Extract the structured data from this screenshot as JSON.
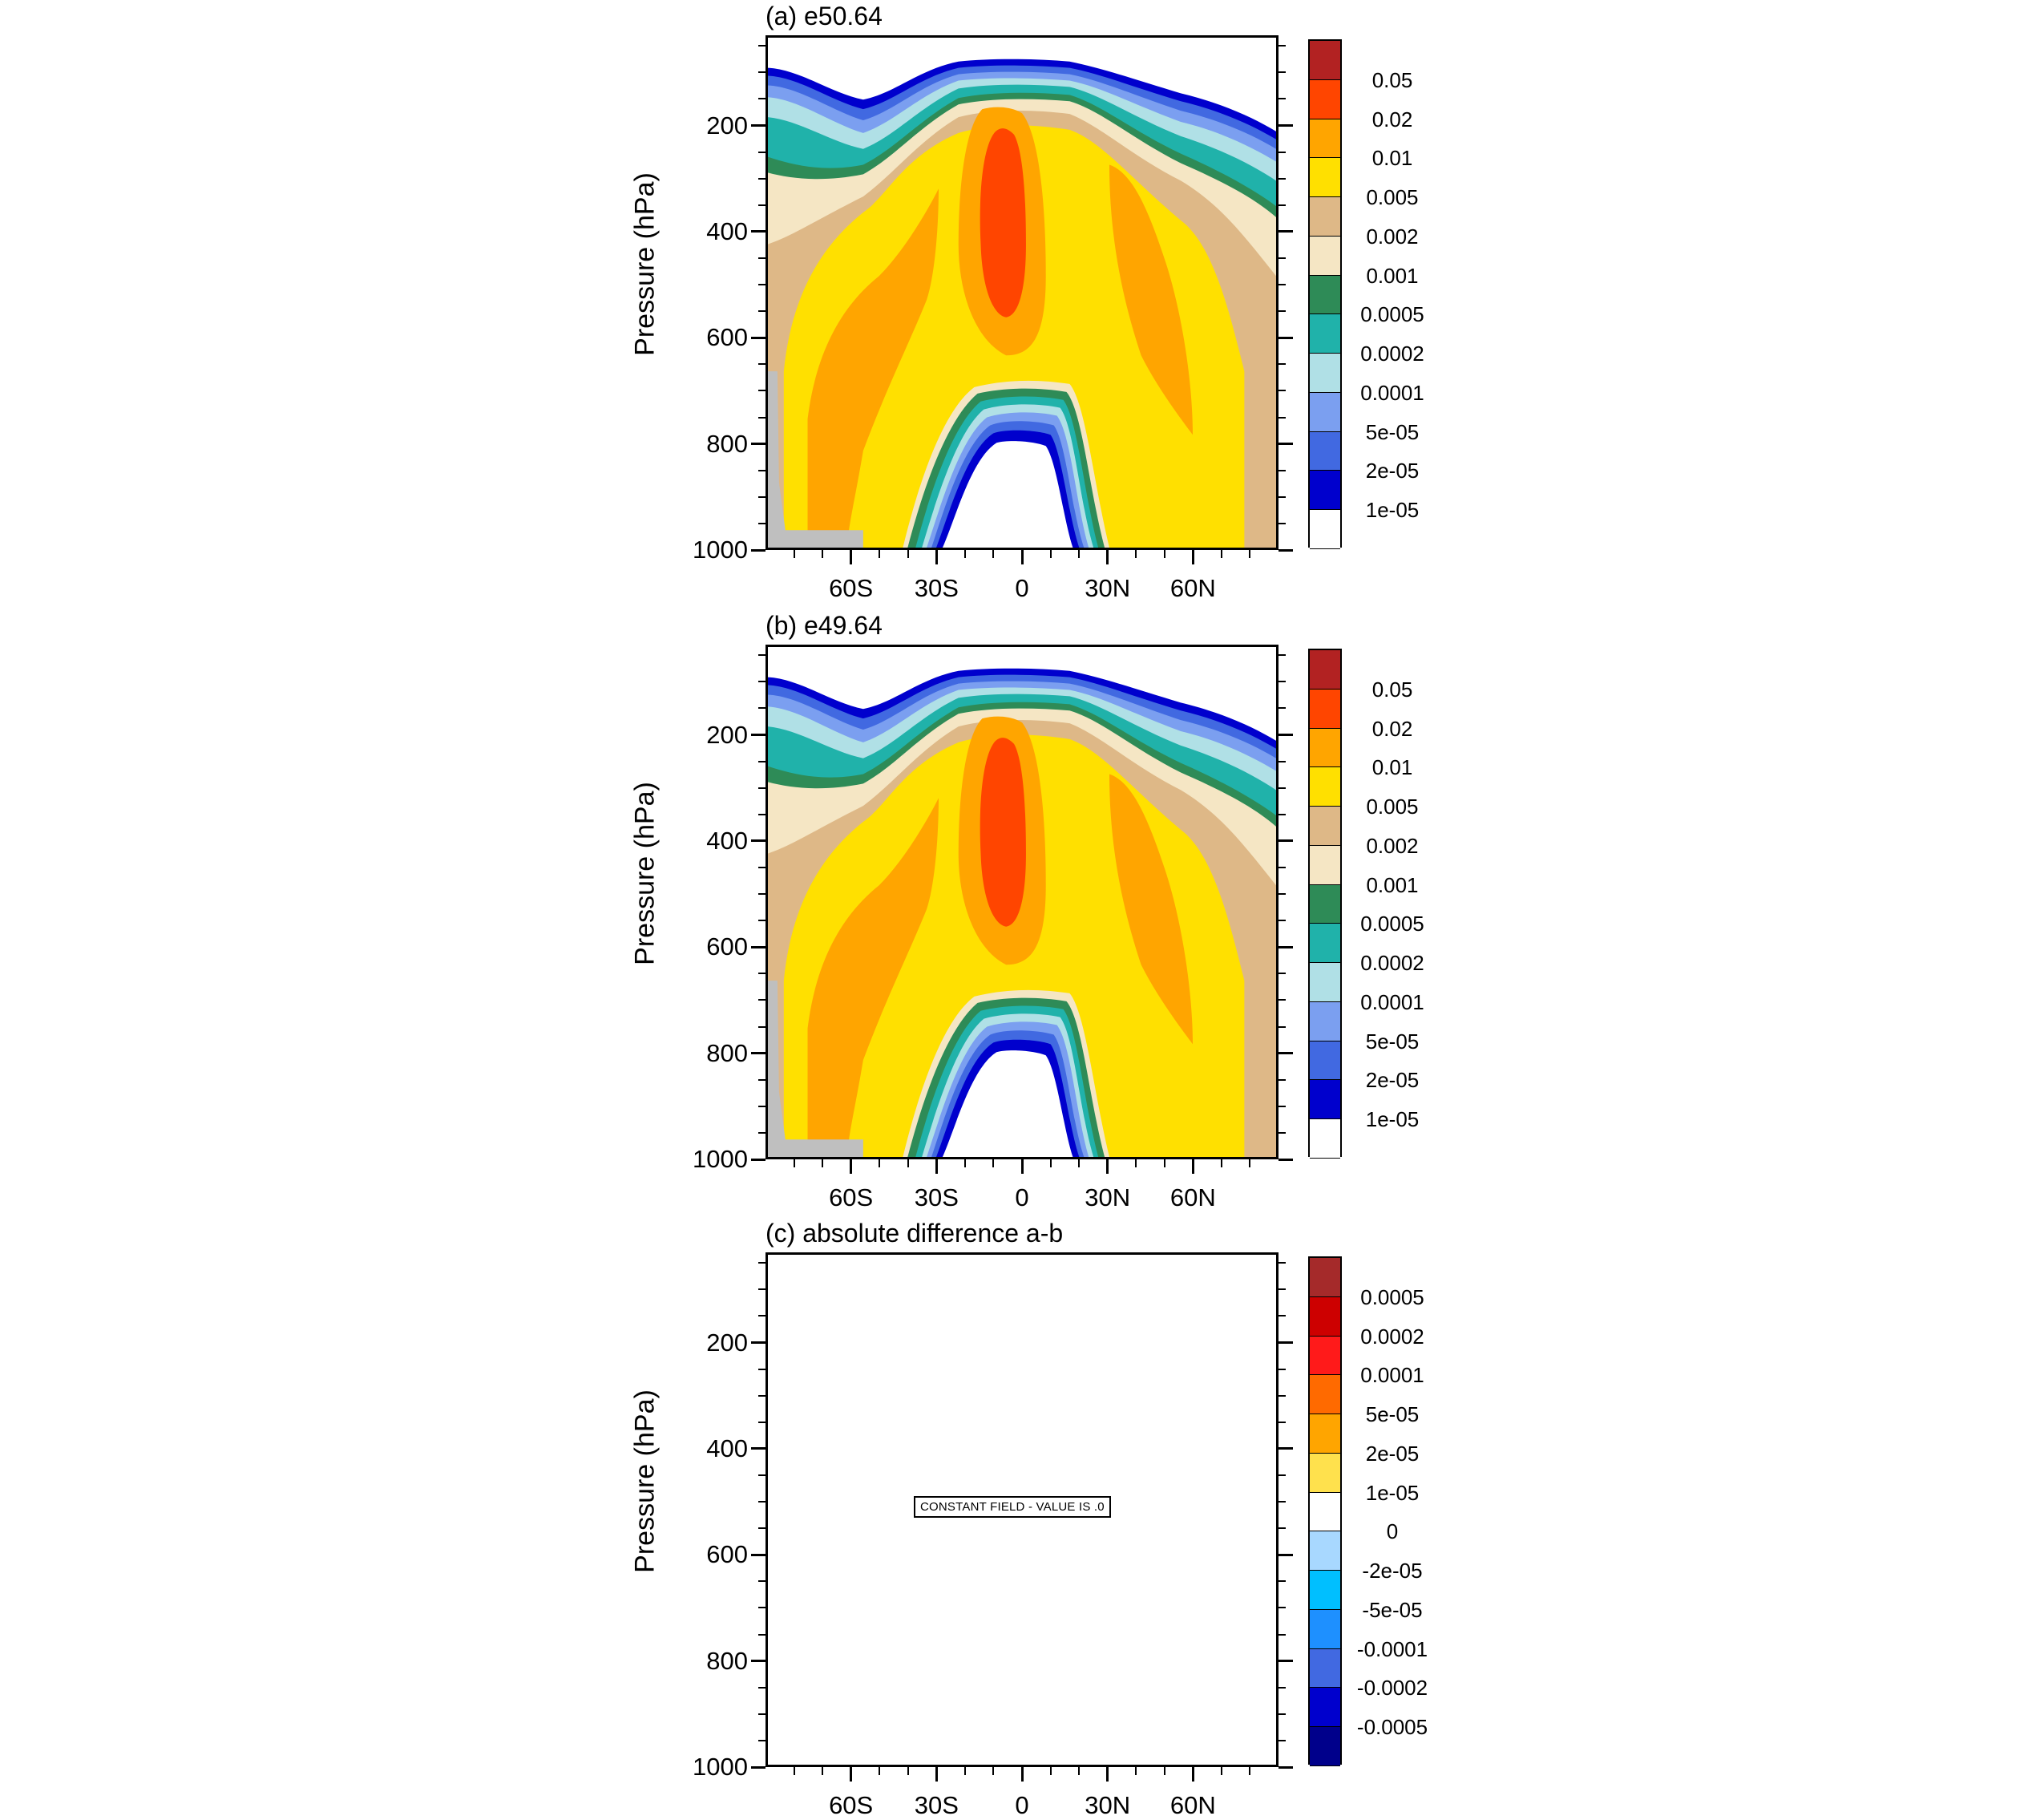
{
  "panels": [
    {
      "id": "a",
      "title": "(a) e50.64",
      "kind": "field"
    },
    {
      "id": "b",
      "title": "(b) e49.64",
      "kind": "field"
    },
    {
      "id": "c",
      "title": "(c) absolute difference a-b",
      "kind": "diff"
    }
  ],
  "ylabel": "Pressure (hPa)",
  "y_ticks": [
    "200",
    "400",
    "600",
    "800",
    "1000"
  ],
  "x_ticks": [
    "60S",
    "30S",
    "0",
    "30N",
    "60N"
  ],
  "constant_field_text": "CONSTANT FIELD - VALUE IS .0",
  "colorbar_field": {
    "labels": [
      "0.05",
      "0.02",
      "0.01",
      "0.005",
      "0.002",
      "0.001",
      "0.0005",
      "0.0002",
      "0.0001",
      "5e-05",
      "2e-05",
      "1e-05"
    ],
    "colors": [
      "#b22222",
      "#ff4500",
      "#ffa500",
      "#ffe000",
      "#deb887",
      "#f5e6c4",
      "#2e8b57",
      "#20b2aa",
      "#b0e0e6",
      "#7b9ff0",
      "#4169e1",
      "#0000cd",
      "#ffffff"
    ]
  },
  "colorbar_diff": {
    "labels": [
      "0.0005",
      "0.0002",
      "0.0001",
      "5e-05",
      "2e-05",
      "1e-05",
      "0",
      "-2e-05",
      "-5e-05",
      "-0.0001",
      "-0.0002",
      "-0.0005"
    ],
    "colors": [
      "#a52a2a",
      "#cd0000",
      "#ff1a1a",
      "#ff6a00",
      "#ffa500",
      "#ffe14d",
      "#ffffff",
      "#a8d8ff",
      "#00bfff",
      "#1e90ff",
      "#4169e1",
      "#0000cd",
      "#00008b"
    ]
  },
  "chart_data": [
    {
      "type": "contour",
      "title": "(a) e50.64",
      "xlabel": "",
      "ylabel": "Pressure (hPa)",
      "x_ticks": [
        "60S",
        "30S",
        "0",
        "30N",
        "60N"
      ],
      "y_ticks": [
        200,
        400,
        600,
        800,
        1000
      ],
      "ylim": [
        1000,
        30
      ],
      "levels": [
        1e-05,
        2e-05,
        5e-05,
        0.0001,
        0.0002,
        0.0005,
        0.001,
        0.002,
        0.005,
        0.01,
        0.02,
        0.05
      ]
    },
    {
      "type": "contour",
      "title": "(b) e49.64",
      "xlabel": "",
      "ylabel": "Pressure (hPa)",
      "x_ticks": [
        "60S",
        "30S",
        "0",
        "30N",
        "60N"
      ],
      "y_ticks": [
        200,
        400,
        600,
        800,
        1000
      ],
      "ylim": [
        1000,
        30
      ],
      "levels": [
        1e-05,
        2e-05,
        5e-05,
        0.0001,
        0.0002,
        0.0005,
        0.001,
        0.002,
        0.005,
        0.01,
        0.02,
        0.05
      ]
    },
    {
      "type": "contour",
      "title": "(c) absolute difference a-b",
      "xlabel": "",
      "ylabel": "Pressure (hPa)",
      "x_ticks": [
        "60S",
        "30S",
        "0",
        "30N",
        "60N"
      ],
      "y_ticks": [
        200,
        400,
        600,
        800,
        1000
      ],
      "ylim": [
        1000,
        30
      ],
      "levels": [
        -0.0005,
        -0.0002,
        -0.0001,
        -5e-05,
        -2e-05,
        0,
        1e-05,
        2e-05,
        5e-05,
        0.0001,
        0.0002,
        0.0005
      ],
      "annotation": "CONSTANT FIELD - VALUE IS .0"
    }
  ]
}
